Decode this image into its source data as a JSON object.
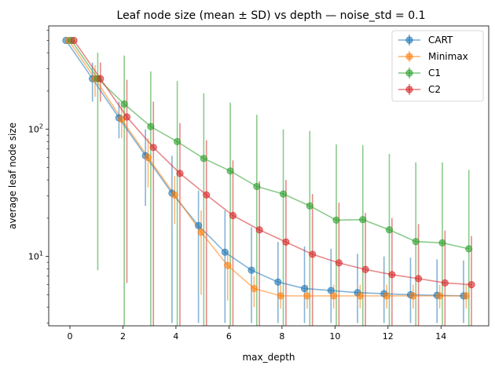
{
  "chart_data": {
    "type": "line",
    "title": "Leaf node size (mean ± SD) vs depth — noise_std = 0.1",
    "xlabel": "max_depth",
    "ylabel": "average leaf node size",
    "xlim": [
      -0.8,
      15.8
    ],
    "ylim": [
      2.85,
      650
    ],
    "yscale": "log",
    "x_ticks": [
      0,
      2,
      4,
      6,
      8,
      10,
      12,
      14
    ],
    "y_ticks": [
      10,
      100
    ],
    "y_tick_labels": [
      "10¹",
      "10²"
    ],
    "legend_position": "top-right",
    "x": [
      0,
      1,
      2,
      3,
      4,
      5,
      6,
      7,
      8,
      9,
      10,
      11,
      12,
      13,
      14,
      15
    ],
    "series": [
      {
        "name": "CART",
        "color": "#1f77b4",
        "offset": -0.15,
        "values": [
          500,
          250,
          123,
          62,
          31.5,
          17.5,
          10.8,
          7.8,
          6.3,
          5.6,
          5.4,
          5.2,
          5.1,
          5.0,
          4.95,
          4.9
        ],
        "lower": [
          500,
          165,
          85,
          25,
          3,
          3,
          3,
          3,
          3,
          3,
          3,
          3,
          3,
          3,
          3,
          3
        ],
        "upper": [
          500,
          335,
          165,
          100,
          62,
          33,
          23,
          17,
          13,
          12,
          11.5,
          10.5,
          10,
          9.8,
          9.5,
          9.3
        ]
      },
      {
        "name": "Minimax",
        "color": "#ff7f0e",
        "offset": -0.05,
        "values": [
          500,
          250,
          120,
          60,
          30.5,
          15.5,
          8.5,
          5.6,
          4.9,
          4.9,
          4.9,
          4.9,
          4.9,
          4.9,
          4.9,
          4.9
        ],
        "lower": [
          500,
          180,
          85,
          35,
          18,
          5,
          4.5,
          4,
          3.9,
          3.9,
          3.9,
          3.9,
          3.9,
          3.9,
          3.9,
          3.9
        ],
        "upper": [
          500,
          320,
          155,
          85,
          43,
          23,
          11,
          7,
          6,
          6,
          6,
          6,
          6,
          6,
          6,
          6
        ]
      },
      {
        "name": "C1",
        "color": "#2ca02c",
        "offset": 0.05,
        "values": [
          500,
          250,
          158,
          105,
          80,
          59,
          47,
          35.5,
          31,
          25,
          19.3,
          19.5,
          16.2,
          13.1,
          12.8,
          11.5
        ],
        "lower": [
          500,
          7.8,
          2.85,
          2.85,
          2.85,
          2.85,
          2.85,
          2.85,
          2.85,
          2.85,
          2.85,
          2.85,
          2.85,
          2.85,
          2.85,
          2.85
        ],
        "upper": [
          500,
          400,
          380,
          285,
          240,
          192,
          162,
          130,
          100,
          97,
          76,
          75,
          64,
          55,
          55,
          48
        ]
      },
      {
        "name": "C2",
        "color": "#d62728",
        "offset": 0.15,
        "values": [
          500,
          250,
          125,
          72,
          45,
          30.5,
          21,
          16.2,
          13,
          10.4,
          8.9,
          7.9,
          7.2,
          6.7,
          6.2,
          6.0
        ],
        "lower": [
          500,
          165,
          6.2,
          2.85,
          2.85,
          2.85,
          2.85,
          2.85,
          2.85,
          2.85,
          2.85,
          2.85,
          2.85,
          2.85,
          2.85,
          2.85
        ],
        "upper": [
          500,
          335,
          245,
          165,
          112,
          82,
          57,
          39,
          40,
          31,
          26.5,
          22,
          20,
          18,
          16,
          14.5
        ]
      }
    ]
  }
}
